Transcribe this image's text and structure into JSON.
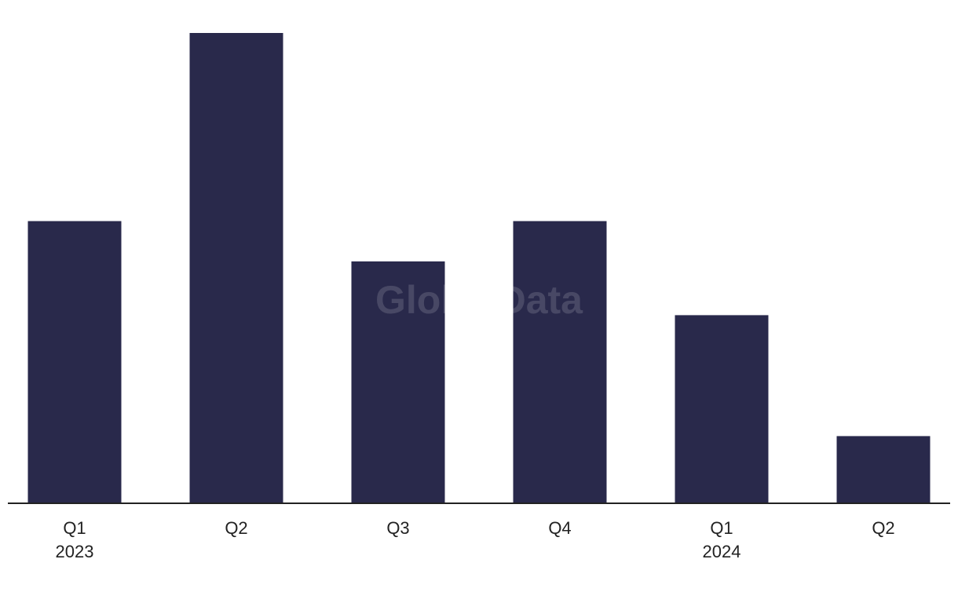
{
  "chart_data": {
    "type": "bar",
    "categories": [
      [
        "Q1",
        "2023"
      ],
      [
        "Q2"
      ],
      [
        "Q3"
      ],
      [
        "Q4"
      ],
      [
        "Q1",
        "2024"
      ],
      [
        "Q2"
      ]
    ],
    "values": [
      21,
      35,
      18,
      21,
      14,
      5
    ],
    "color": "#29294b",
    "ylim": [
      0,
      35
    ],
    "watermark": "GlobalData"
  }
}
